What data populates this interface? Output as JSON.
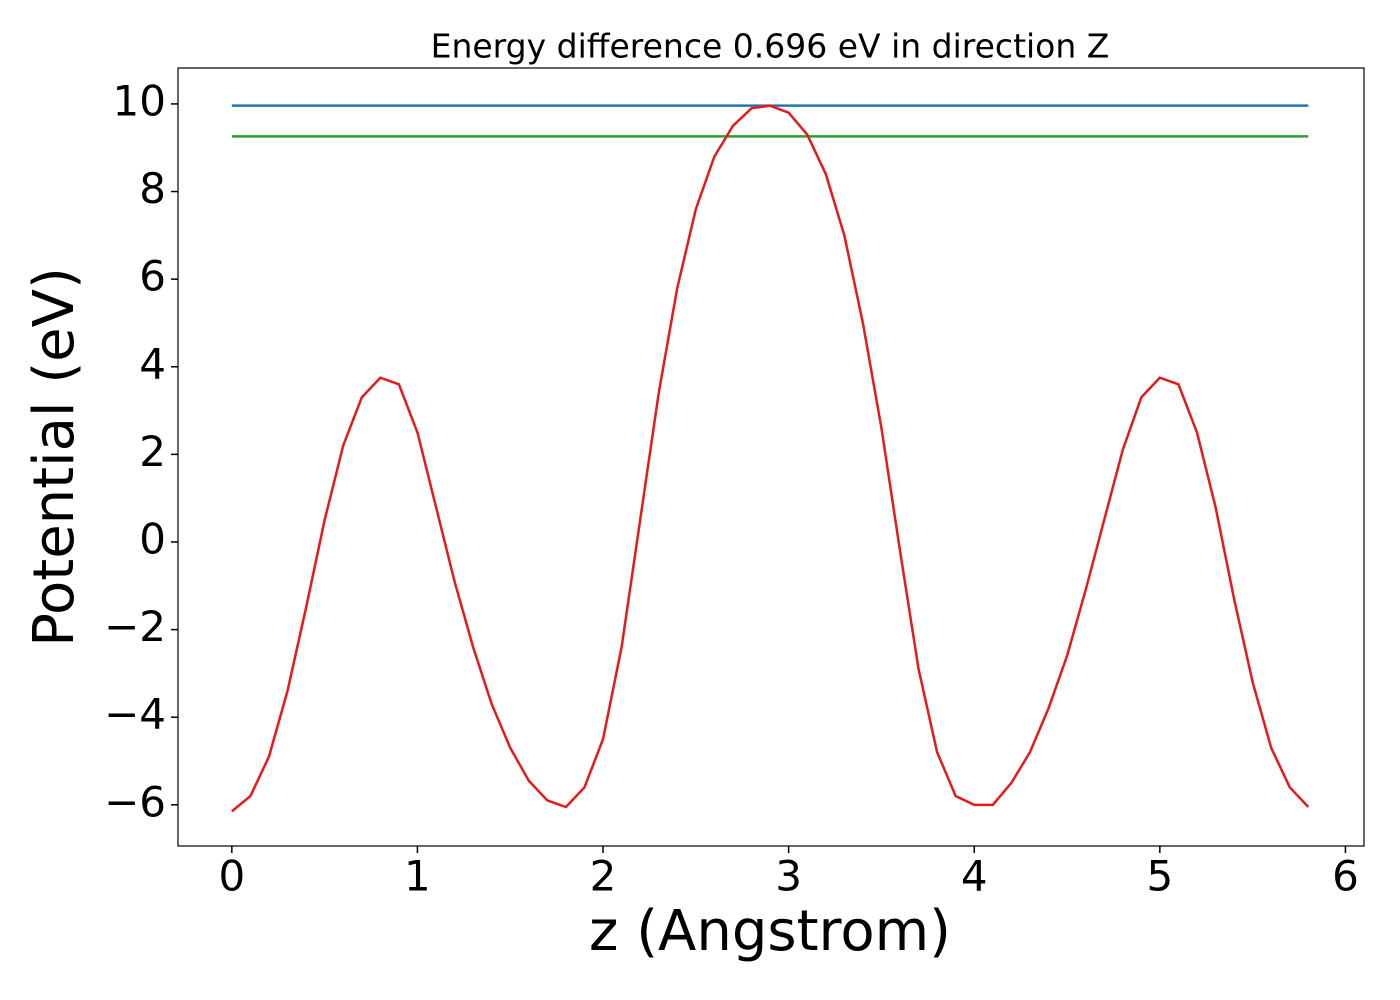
{
  "chart_data": {
    "type": "line",
    "title": "Energy difference 0.696 eV in direction Z",
    "xlabel": "z (Angstrom)",
    "ylabel": "Potential (eV)",
    "xlim": [
      -0.29,
      6.1
    ],
    "ylim": [
      -6.94,
      10.82
    ],
    "xticks": [
      0,
      1,
      2,
      3,
      4,
      5,
      6
    ],
    "yticks": [
      {
        "value": -6,
        "label": "−6"
      },
      {
        "value": -4,
        "label": "−4"
      },
      {
        "value": -2,
        "label": "−2"
      },
      0,
      2,
      4,
      6,
      8,
      10
    ],
    "grid": false,
    "series": [
      {
        "color": "#1f77b4",
        "x": [
          0,
          5.8
        ],
        "values": [
          9.96,
          9.96
        ]
      },
      {
        "color": "#2ca02c",
        "x": [
          0,
          5.8
        ],
        "values": [
          9.26,
          9.26
        ]
      },
      {
        "color": "#e41a1c",
        "x": [
          0,
          0.1,
          0.2,
          0.3,
          0.4,
          0.5,
          0.6,
          0.7,
          0.8,
          0.9,
          1.0,
          1.1,
          1.2,
          1.3,
          1.4,
          1.5,
          1.6,
          1.7,
          1.8,
          1.9,
          2.0,
          2.1,
          2.2,
          2.3,
          2.4,
          2.5,
          2.6,
          2.7,
          2.8,
          2.9,
          3.0,
          3.1,
          3.2,
          3.3,
          3.4,
          3.5,
          3.6,
          3.7,
          3.8,
          3.9,
          4.0,
          4.1,
          4.2,
          4.3,
          4.4,
          4.5,
          4.6,
          4.7,
          4.8,
          4.9,
          5.0,
          5.1,
          5.2,
          5.3,
          5.4,
          5.5,
          5.6,
          5.7,
          5.8
        ],
        "values": [
          -6.15,
          -5.8,
          -4.9,
          -3.4,
          -1.5,
          0.5,
          2.2,
          3.3,
          3.75,
          3.6,
          2.5,
          0.8,
          -0.9,
          -2.4,
          -3.7,
          -4.7,
          -5.45,
          -5.9,
          -6.05,
          -5.6,
          -4.5,
          -2.4,
          0.5,
          3.4,
          5.8,
          7.6,
          8.8,
          9.5,
          9.9,
          9.96,
          9.8,
          9.3,
          8.4,
          7.0,
          5.0,
          2.6,
          -0.2,
          -2.9,
          -4.8,
          -5.8,
          -6.0,
          -6.0,
          -5.5,
          -4.8,
          -3.8,
          -2.6,
          -1.1,
          0.5,
          2.1,
          3.3,
          3.75,
          3.6,
          2.5,
          0.8,
          -1.3,
          -3.2,
          -4.7,
          -5.6,
          -6.05
        ]
      }
    ]
  }
}
